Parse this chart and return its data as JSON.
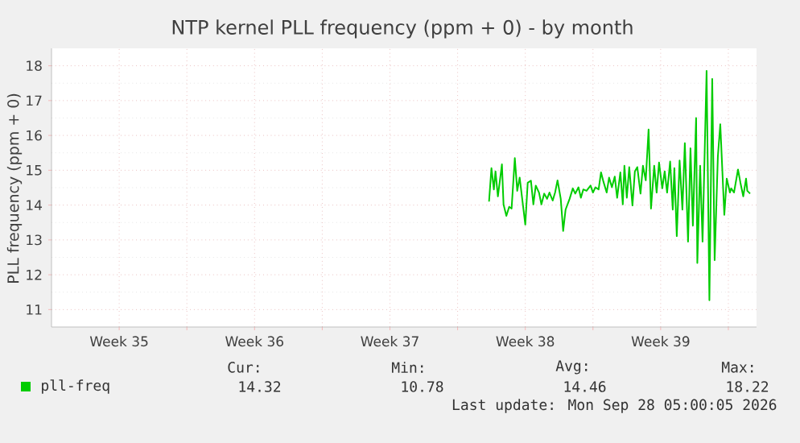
{
  "chart_data": {
    "type": "line",
    "title": "NTP kernel PLL frequency (ppm + 0) - by month",
    "ylabel": "PLL frequency (ppm + 0)",
    "xlim": [
      "2026-08-24T00:00",
      "2026-09-29T11:00"
    ],
    "ylim": [
      10.5,
      18.5
    ],
    "xticks": [
      {
        "value": "2026-08-27T12:00",
        "label": "Week 35"
      },
      {
        "value": "2026-08-31T00:00",
        "label": null
      },
      {
        "value": "2026-09-03T12:00",
        "label": "Week 36"
      },
      {
        "value": "2026-09-07T00:00",
        "label": null
      },
      {
        "value": "2026-09-10T12:00",
        "label": "Week 37"
      },
      {
        "value": "2026-09-14T00:00",
        "label": null
      },
      {
        "value": "2026-09-17T12:00",
        "label": "Week 38"
      },
      {
        "value": "2026-09-21T00:00",
        "label": null
      },
      {
        "value": "2026-09-24T12:00",
        "label": "Week 39"
      },
      {
        "value": "2026-09-28T00:00",
        "label": null
      }
    ],
    "yticks": [
      11,
      12,
      13,
      14,
      15,
      16,
      17,
      18
    ],
    "grid": true,
    "legend": "bottom",
    "series": [
      {
        "name": "pll-freq",
        "color": "#00cc00",
        "x": [
          "2026-09-15T15:00",
          "2026-09-15T18:00",
          "2026-09-15T21:00",
          "2026-09-15T23:00",
          "2026-09-16T02:00",
          "2026-09-16T07:00",
          "2026-09-16T09:00",
          "2026-09-16T12:30",
          "2026-09-16T16:00",
          "2026-09-16T19:00",
          "2026-09-16T23:00",
          "2026-09-17T02:00",
          "2026-09-17T05:00",
          "2026-09-17T09:00",
          "2026-09-17T12:00",
          "2026-09-17T15:00",
          "2026-09-17T19:00",
          "2026-09-17T22:00",
          "2026-09-18T01:00",
          "2026-09-18T05:00",
          "2026-09-18T08:00",
          "2026-09-18T11:30",
          "2026-09-18T15:00",
          "2026-09-18T18:00",
          "2026-09-18T22:00",
          "2026-09-19T01:00",
          "2026-09-19T04:00",
          "2026-09-19T08:00",
          "2026-09-19T11:00",
          "2026-09-19T14:00",
          "2026-09-19T19:00",
          "2026-09-19T23:00",
          "2026-09-20T02:00",
          "2026-09-20T06:00",
          "2026-09-20T09:00",
          "2026-09-20T12:00",
          "2026-09-20T16:00",
          "2026-09-20T21:00",
          "2026-09-21T00:00",
          "2026-09-21T03:00",
          "2026-09-21T07:00",
          "2026-09-21T10:00",
          "2026-09-21T13:00",
          "2026-09-21T17:00",
          "2026-09-21T20:00",
          "2026-09-21T23:30",
          "2026-09-22T03:00",
          "2026-09-22T06:00",
          "2026-09-22T10:00",
          "2026-09-22T13:00",
          "2026-09-22T15:00",
          "2026-09-22T18:00",
          "2026-09-22T21:00",
          "2026-09-23T01:00",
          "2026-09-23T04:00",
          "2026-09-23T07:00",
          "2026-09-23T11:00",
          "2026-09-23T14:00",
          "2026-09-23T17:30",
          "2026-09-23T21:00",
          "2026-09-24T00:00",
          "2026-09-24T04:00",
          "2026-09-24T07:00",
          "2026-09-24T10:00",
          "2026-09-24T14:00",
          "2026-09-24T17:00",
          "2026-09-24T20:00",
          "2026-09-24T23:45",
          "2026-09-25T03:00",
          "2026-09-25T05:00",
          "2026-09-25T08:00",
          "2026-09-25T11:30",
          "2026-09-25T15:00",
          "2026-09-25T18:00",
          "2026-09-25T22:00",
          "2026-09-26T01:00",
          "2026-09-26T04:00",
          "2026-09-26T08:00",
          "2026-09-26T09:30",
          "2026-09-26T13:00",
          "2026-09-26T16:00",
          "2026-09-26T21:00",
          "2026-09-27T00:30",
          "2026-09-27T04:00",
          "2026-09-27T07:00",
          "2026-09-27T11:00",
          "2026-09-27T14:00",
          "2026-09-27T19:00",
          "2026-09-27T22:00",
          "2026-09-28T02:00",
          "2026-09-28T03:30",
          "2026-09-28T07:00",
          "2026-09-28T12:00",
          "2026-09-28T15:00",
          "2026-09-28T18:30",
          "2026-09-28T22:00",
          "2026-09-28T23:30",
          "2026-09-29T03:00"
        ],
        "values": [
          14.1,
          15.06,
          14.45,
          14.97,
          14.25,
          15.17,
          14.02,
          13.69,
          13.95,
          13.9,
          15.35,
          14.41,
          14.79,
          14.02,
          13.44,
          14.64,
          14.7,
          14.02,
          14.56,
          14.36,
          14.02,
          14.33,
          14.18,
          14.36,
          14.13,
          14.36,
          14.71,
          14.18,
          13.26,
          13.87,
          14.18,
          14.48,
          14.33,
          14.51,
          14.21,
          14.45,
          14.41,
          14.56,
          14.36,
          14.51,
          14.45,
          14.94,
          14.67,
          14.36,
          14.79,
          14.51,
          14.82,
          14.21,
          14.94,
          14.02,
          15.13,
          14.21,
          15.09,
          13.99,
          14.97,
          15.09,
          14.33,
          15.13,
          14.71,
          16.17,
          13.9,
          15.13,
          14.36,
          15.22,
          14.48,
          14.97,
          14.36,
          15.25,
          13.87,
          15.06,
          13.11,
          15.28,
          13.87,
          15.78,
          12.95,
          15.63,
          13.41,
          16.5,
          12.34,
          15.13,
          12.95,
          17.85,
          11.27,
          17.62,
          12.42,
          15.4,
          16.32,
          13.72,
          14.76,
          14.36,
          14.48,
          14.36,
          15.02,
          14.64,
          14.25,
          14.76,
          14.41,
          14.33
        ]
      }
    ],
    "annotations": [
      "Cur:",
      "Min:",
      "Avg:",
      "Max:",
      "14.32",
      "10.78",
      "14.46",
      "18.22",
      "Last update: Mon Sep 28 05:00:05 2026"
    ]
  }
}
